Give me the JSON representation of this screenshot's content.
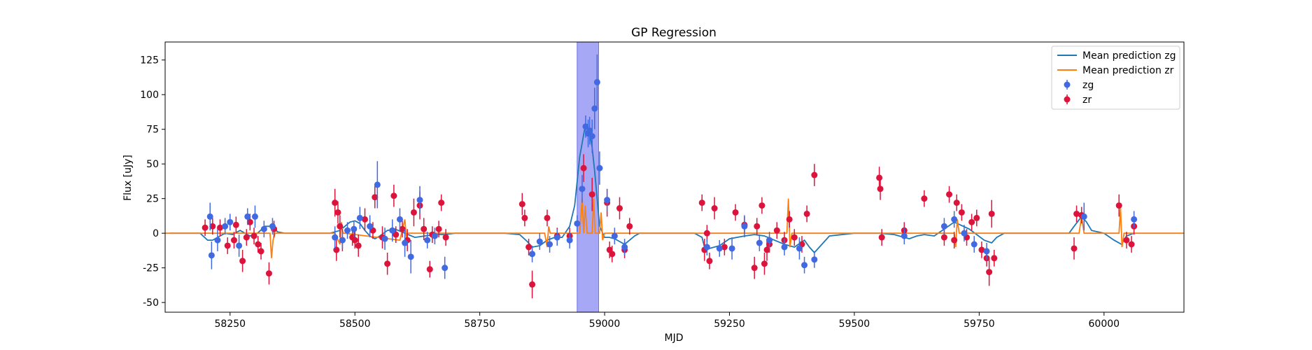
{
  "chart_data": {
    "type": "scatter",
    "title": "GP Regression",
    "xlabel": "MJD",
    "ylabel": "Flux [uJy]",
    "xlim": [
      58120,
      60160
    ],
    "ylim": [
      -57,
      138
    ],
    "xticks": [
      58250,
      58500,
      58750,
      59000,
      59250,
      59500,
      59750,
      60000
    ],
    "yticks": [
      -50,
      -25,
      0,
      25,
      50,
      75,
      100,
      125
    ],
    "grid": false,
    "legend_position": "top-right",
    "highlight_region": {
      "x0": 58945,
      "x1": 58988,
      "color": "#a6a8f6"
    },
    "colors": {
      "zg_line": "#1f77b4",
      "zr_line": "#ff7f0e",
      "zg_points": "#4169e1",
      "zr_points": "#dc143c"
    },
    "legend": [
      {
        "label": "Mean prediction zg",
        "kind": "line",
        "color": "#1f77b4"
      },
      {
        "label": "Mean prediction zr",
        "kind": "line",
        "color": "#ff7f0e"
      },
      {
        "label": "zg",
        "kind": "errorbar",
        "color": "#4169e1"
      },
      {
        "label": "zr",
        "kind": "errorbar",
        "color": "#dc143c"
      }
    ],
    "series": [
      {
        "name": "Mean prediction zg",
        "kind": "line",
        "x": [
          58130,
          58190,
          58205,
          58215,
          58225,
          58240,
          58255,
          58270,
          58290,
          58305,
          58320,
          58335,
          58345,
          58360,
          58400,
          58450,
          58470,
          58480,
          58490,
          58500,
          58510,
          58520,
          58530,
          58540,
          58550,
          58565,
          58580,
          58600,
          58620,
          58640,
          58660,
          58680,
          58700,
          58720,
          58760,
          58800,
          58830,
          58845,
          58855,
          58870,
          58885,
          58900,
          58915,
          58930,
          58940,
          58950,
          58960,
          58965,
          58970,
          58975,
          58980,
          58985,
          58990,
          59000,
          59010,
          59020,
          59030,
          59040,
          59050,
          59060,
          59070,
          59100,
          59150,
          59180,
          59195,
          59200,
          59210,
          59230,
          59250,
          59280,
          59300,
          59320,
          59340,
          59360,
          59380,
          59400,
          59410,
          59420,
          59430,
          59450,
          59500,
          59550,
          59580,
          59600,
          59610,
          59625,
          59640,
          59660,
          59680,
          59700,
          59730,
          59760,
          59775,
          59785,
          59800,
          59850,
          59900,
          59930,
          59940,
          59955,
          59965,
          59975,
          60000,
          60020,
          60035,
          60045,
          60060
        ],
        "y": [
          0,
          0,
          -5,
          -5,
          -3,
          0,
          -1,
          2,
          -2,
          0,
          5,
          5,
          1,
          0,
          0,
          0,
          2,
          5,
          8,
          9,
          7,
          2,
          -2,
          -4,
          -2,
          2,
          3,
          0,
          -3,
          -2,
          -1,
          -1,
          0,
          0,
          0,
          0,
          -1,
          -6,
          -10,
          -9,
          -5,
          -3,
          -3,
          5,
          20,
          55,
          75,
          76,
          72,
          62,
          45,
          25,
          5,
          -3,
          -3,
          -4,
          -6,
          -8,
          -5,
          -2,
          0,
          0,
          0,
          0,
          -3,
          -10,
          -11,
          -9,
          -4,
          -2,
          -1,
          -2,
          -5,
          -8,
          -10,
          -5,
          -10,
          -14,
          -10,
          -2,
          0,
          0,
          -1,
          -3,
          -4,
          -2,
          -1,
          -2,
          3,
          8,
          3,
          -5,
          -7,
          -3,
          0,
          0,
          0,
          0,
          5,
          12,
          8,
          2,
          0,
          -5,
          -8,
          -2,
          0
        ]
      },
      {
        "name": "Mean prediction zr",
        "kind": "line",
        "x": [
          58120,
          58330,
          58333,
          58336,
          58340,
          58460,
          58470,
          58473,
          58476,
          58480,
          58590,
          58600,
          58603,
          58606,
          58610,
          58880,
          58885,
          58888,
          58891,
          58895,
          58950,
          58955,
          58958,
          58961,
          58965,
          58975,
          58978,
          58981,
          58985,
          58990,
          58993,
          58996,
          59000,
          59365,
          59368,
          59371,
          59375,
          59700,
          59703,
          59706,
          59710,
          59800,
          59950,
          59955,
          59960,
          59965,
          60030,
          60033,
          60036,
          60040,
          60160
        ],
        "y": [
          0,
          0,
          -18,
          -5,
          0,
          0,
          -8,
          8,
          0,
          0,
          -5,
          10,
          -3,
          0,
          0,
          0,
          -10,
          5,
          0,
          0,
          0,
          25,
          0,
          20,
          0,
          0,
          25,
          0,
          0,
          0,
          15,
          -5,
          0,
          0,
          25,
          -10,
          0,
          0,
          -10,
          10,
          0,
          0,
          0,
          12,
          0,
          0,
          0,
          18,
          -10,
          0,
          0
        ]
      },
      {
        "name": "zg",
        "kind": "errorbar",
        "x": [
          58210,
          58213,
          58225,
          58240,
          58250,
          58268,
          58285,
          58300,
          58318,
          58335,
          58460,
          58475,
          58485,
          58498,
          58510,
          58530,
          58545,
          58560,
          58575,
          58590,
          58600,
          58612,
          58630,
          58645,
          58660,
          58680,
          58855,
          58870,
          58890,
          58905,
          58930,
          58945,
          58955,
          58962,
          58967,
          58970,
          58975,
          58980,
          58985,
          58990,
          59005,
          59020,
          59040,
          59205,
          59230,
          59255,
          59280,
          59310,
          59330,
          59360,
          59390,
          59400,
          59420,
          59600,
          59680,
          59700,
          59720,
          59740,
          59765,
          59960,
          60060
        ],
        "y": [
          12,
          -16,
          -5,
          5,
          8,
          -9,
          12,
          12,
          3,
          5,
          -3,
          -5,
          2,
          3,
          11,
          5,
          35,
          -4,
          2,
          10,
          -7,
          -17,
          24,
          -5,
          -2,
          -25,
          -15,
          -6,
          -8,
          -3,
          -5,
          7,
          32,
          77,
          72,
          74,
          70,
          90,
          109,
          47,
          24,
          -2,
          -10,
          -10,
          -11,
          -11,
          5,
          -7,
          -5,
          -10,
          -11,
          -23,
          -19,
          -2,
          5,
          10,
          0,
          -8,
          -13,
          12,
          10
        ],
        "err": [
          10,
          10,
          8,
          6,
          6,
          8,
          6,
          8,
          6,
          6,
          8,
          6,
          6,
          6,
          8,
          8,
          17,
          8,
          8,
          8,
          10,
          12,
          10,
          6,
          6,
          8,
          6,
          6,
          6,
          6,
          6,
          6,
          10,
          8,
          10,
          10,
          12,
          15,
          20,
          12,
          8,
          6,
          6,
          6,
          6,
          8,
          8,
          6,
          6,
          6,
          8,
          6,
          6,
          6,
          6,
          6,
          6,
          6,
          6,
          10,
          6
        ]
      },
      {
        "name": "zr",
        "kind": "errorbar",
        "x": [
          58200,
          58215,
          58230,
          58245,
          58258,
          58262,
          58275,
          58283,
          58290,
          58298,
          58306,
          58312,
          58328,
          58338,
          58460,
          58463,
          58466,
          58470,
          58475,
          58495,
          58500,
          58507,
          58520,
          58536,
          58540,
          58555,
          58565,
          58578,
          58582,
          58595,
          58605,
          58618,
          58630,
          58638,
          58650,
          58655,
          58668,
          58673,
          58682,
          58835,
          58840,
          58848,
          58855,
          58885,
          58905,
          58930,
          58958,
          58975,
          59005,
          59010,
          59015,
          59030,
          59040,
          59050,
          59195,
          59200,
          59205,
          59210,
          59220,
          59240,
          59262,
          59280,
          59300,
          59305,
          59315,
          59320,
          59325,
          59330,
          59345,
          59360,
          59370,
          59380,
          59395,
          59405,
          59420,
          59550,
          59552,
          59555,
          59600,
          59640,
          59680,
          59690,
          59700,
          59705,
          59715,
          59725,
          59735,
          59745,
          59755,
          59765,
          59770,
          59775,
          59780,
          59940,
          59945,
          59955,
          60030,
          60045,
          60055,
          60060
        ],
        "y": [
          4,
          5,
          4,
          -9,
          -5,
          6,
          -20,
          -3,
          8,
          -2,
          -8,
          -13,
          -29,
          3,
          22,
          -12,
          15,
          5,
          -5,
          -3,
          -5,
          -9,
          10,
          2,
          26,
          -3,
          -22,
          27,
          -1,
          3,
          -5,
          15,
          20,
          3,
          -26,
          -1,
          3,
          22,
          -3,
          21,
          11,
          -10,
          -37,
          11,
          -2,
          -2,
          47,
          28,
          22,
          -12,
          -15,
          18,
          -12,
          5,
          22,
          -12,
          0,
          -20,
          18,
          -10,
          15,
          6,
          -25,
          5,
          20,
          -22,
          -12,
          -8,
          2,
          -5,
          10,
          -3,
          -8,
          14,
          42,
          40,
          32,
          -3,
          2,
          25,
          -3,
          28,
          -5,
          22,
          15,
          -3,
          8,
          11,
          -12,
          -18,
          -28,
          14,
          -18,
          -11,
          14,
          13,
          20,
          -5,
          -8,
          5
        ],
        "err": [
          6,
          6,
          6,
          6,
          6,
          6,
          8,
          6,
          6,
          6,
          6,
          6,
          8,
          6,
          10,
          8,
          8,
          8,
          8,
          6,
          6,
          8,
          8,
          6,
          8,
          8,
          8,
          8,
          6,
          6,
          8,
          10,
          10,
          8,
          6,
          6,
          6,
          6,
          6,
          8,
          6,
          6,
          10,
          6,
          6,
          6,
          10,
          12,
          10,
          6,
          6,
          8,
          6,
          6,
          6,
          8,
          6,
          6,
          8,
          6,
          6,
          6,
          8,
          6,
          6,
          8,
          8,
          6,
          6,
          6,
          6,
          6,
          6,
          6,
          8,
          8,
          8,
          6,
          6,
          6,
          6,
          6,
          6,
          6,
          6,
          6,
          6,
          6,
          6,
          6,
          10,
          10,
          6,
          8,
          6,
          6,
          8,
          6,
          6,
          6
        ]
      }
    ]
  }
}
